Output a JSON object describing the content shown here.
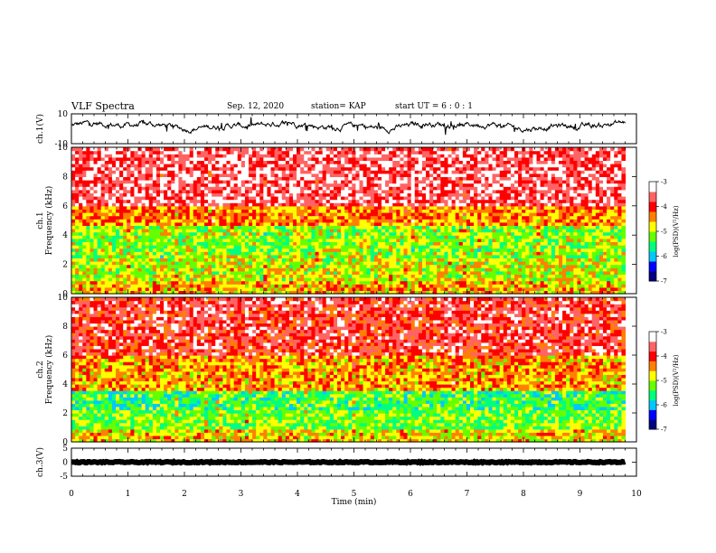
{
  "header": {
    "title": "VLF Spectra",
    "date": "Sep. 12, 2020",
    "station": "station= KAP",
    "start": "start  UT =   6 : 0  : 1"
  },
  "chart_data": [
    {
      "type": "line",
      "panel": "ch1-waveform",
      "ylabel": "ch.1(V)",
      "ylim": [
        -10,
        10
      ],
      "yticks": [
        "10",
        "-10"
      ],
      "x_range_min": [
        0,
        9.8
      ],
      "y_level_approx": 2,
      "color": "#000000"
    },
    {
      "type": "heatmap",
      "panel": "ch1-spectrogram",
      "ylabel_line1": "ch.1",
      "ylabel_line2": "Frequency (kHz)",
      "ylim": [
        0,
        10
      ],
      "yticks": [
        "0",
        "2",
        "4",
        "6",
        "8",
        "10"
      ],
      "x_range_min": [
        0,
        9.8
      ],
      "colorbar": {
        "label": "log(PSD)(V²/Hz)",
        "range": [
          -7,
          -3
        ],
        "ticks": [
          "-3",
          "-4",
          "-5",
          "-6",
          "-7"
        ],
        "colors": [
          "#000080",
          "#0000ff",
          "#00c8ff",
          "#00ff80",
          "#64ff00",
          "#ffff00",
          "#ff8000",
          "#ff0000",
          "#ff6464",
          "#ffffff"
        ]
      },
      "dominant_levels_by_freq_khz": [
        {
          "f": [
            0,
            1
          ],
          "level": -4.6
        },
        {
          "f": [
            1,
            2.4
          ],
          "level": -4.9
        },
        {
          "f": [
            2.4,
            4.6
          ],
          "level": -5.1
        },
        {
          "f": [
            4.6,
            6
          ],
          "level": -4.4
        },
        {
          "f": [
            6,
            10
          ],
          "level": -3.6
        }
      ]
    },
    {
      "type": "heatmap",
      "panel": "ch2-spectrogram",
      "ylabel_line1": "ch.2",
      "ylabel_line2": "Frequency (kHz)",
      "ylim": [
        0,
        10
      ],
      "yticks": [
        "0",
        "2",
        "4",
        "6",
        "8",
        "10"
      ],
      "x_range_min": [
        0,
        9.8
      ],
      "colorbar": {
        "label": "log(PSD)(V²/Hz)",
        "range": [
          -7,
          -3
        ],
        "ticks": [
          "-3",
          "-4",
          "-5",
          "-6",
          "-7"
        ],
        "colors": [
          "#000080",
          "#0000ff",
          "#00c8ff",
          "#00ff80",
          "#64ff00",
          "#ffff00",
          "#ff8000",
          "#ff0000",
          "#ff6464",
          "#ffffff"
        ]
      },
      "dominant_levels_by_freq_khz": [
        {
          "f": [
            0,
            1
          ],
          "level": -4.7
        },
        {
          "f": [
            1,
            2.2
          ],
          "level": -5.2
        },
        {
          "f": [
            2.2,
            3.6
          ],
          "level": -5.4
        },
        {
          "f": [
            3.6,
            6
          ],
          "level": -4.5
        },
        {
          "f": [
            6,
            10
          ],
          "level": -3.8
        }
      ]
    },
    {
      "type": "line",
      "panel": "ch3-waveform",
      "ylabel": "ch.3(V)",
      "ylim": [
        -5,
        5
      ],
      "yticks": [
        "5",
        "0",
        "-5"
      ],
      "x_range_min": [
        0,
        9.8
      ],
      "y_level_approx": 0,
      "color": "#000000"
    }
  ],
  "x_axis": {
    "xlabel": "Time (min)",
    "xlim": [
      0,
      10
    ],
    "ticks": [
      "0",
      "1",
      "2",
      "3",
      "4",
      "5",
      "6",
      "7",
      "8",
      "9",
      "10"
    ]
  }
}
